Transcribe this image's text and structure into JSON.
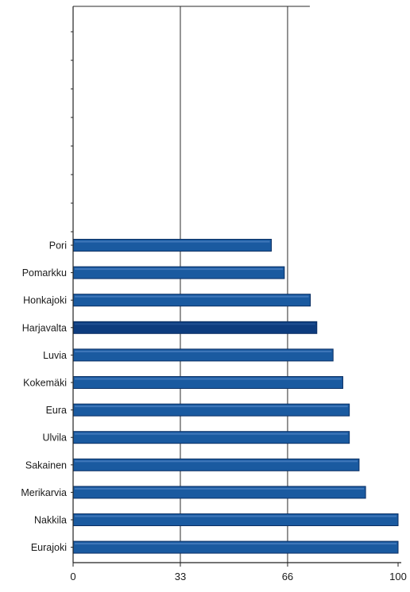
{
  "chart_data": {
    "type": "bar",
    "orientation": "horizontal",
    "title": "",
    "xlabel": "",
    "ylabel": "",
    "categories": [
      "Pori",
      "Pomarkku",
      "Honkajoki",
      "Harjavalta",
      "Luvia",
      "Kokemäki",
      "Eura",
      "Ulvila",
      "Sakainen",
      "Merikarvia",
      "Nakkila",
      "Eurajoki"
    ],
    "values": [
      61,
      65,
      73,
      75,
      80,
      83,
      85,
      85,
      88,
      90,
      100,
      100
    ],
    "highlighted_category": "Harjavalta",
    "xlim": [
      0,
      100
    ],
    "x_ticks": [
      0,
      33,
      66,
      100
    ],
    "grid": "vertical lines at 33 and 66",
    "colors": {
      "bar": "#1a5aa0",
      "bar_highlight": "#0d3c7e",
      "bar_edge": "#0b2f63",
      "axis": "#222222"
    }
  }
}
